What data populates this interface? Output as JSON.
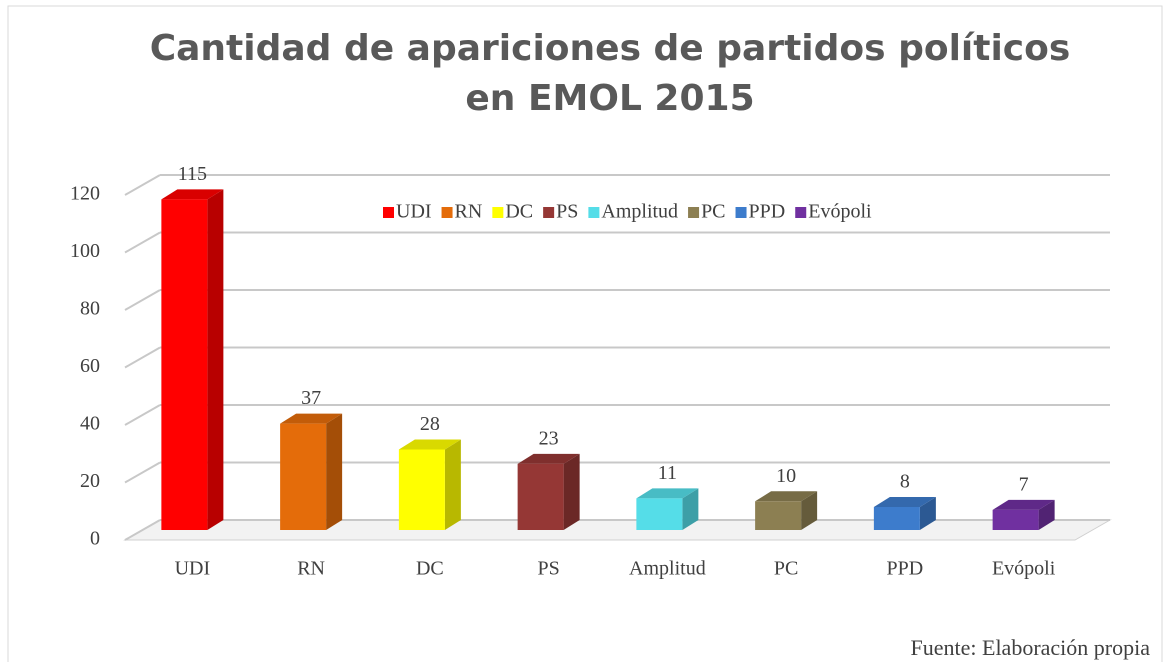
{
  "chart_data": {
    "type": "bar3d",
    "title": [
      "Cantidad de apariciones de partidos políticos",
      "en EMOL 2015"
    ],
    "categories": [
      "UDI",
      "RN",
      "DC",
      "PS",
      "Amplitud",
      "PC",
      "PPD",
      "Evópoli"
    ],
    "values": [
      115,
      37,
      28,
      23,
      11,
      10,
      8,
      7
    ],
    "colors": [
      "#ff0000",
      "#e46c0a",
      "#ffff00",
      "#953735",
      "#55dde8",
      "#8c7f52",
      "#3d7ccc",
      "#7030a0"
    ],
    "ylim": [
      0,
      120
    ],
    "yticks": [
      0,
      20,
      40,
      60,
      80,
      100,
      120
    ],
    "grid": true,
    "legend": "top",
    "source": "Fuente: Elaboración propia"
  }
}
